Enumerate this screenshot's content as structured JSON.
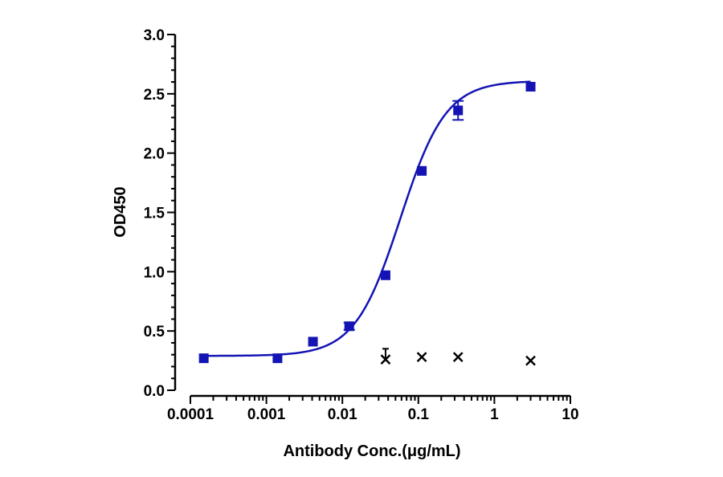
{
  "chart_data": {
    "type": "scatter",
    "title": "",
    "xlabel": "Antibody Conc.(μg/mL)",
    "ylabel": "OD450",
    "x_scale": "log",
    "xlim": [
      0.0001,
      10
    ],
    "ylim": [
      0.0,
      3.0
    ],
    "x_ticks": [
      0.0001,
      0.001,
      0.01,
      0.1,
      1,
      10
    ],
    "x_tick_labels": [
      "0.0001",
      "0.001",
      "0.01",
      "0.1",
      "1",
      "10"
    ],
    "y_ticks": [
      0.0,
      0.5,
      1.0,
      1.5,
      2.0,
      2.5,
      3.0
    ],
    "y_tick_labels": [
      "0.0",
      "0.5",
      "1.0",
      "1.5",
      "2.0",
      "2.5",
      "3.0"
    ],
    "grid": false,
    "legend": "none",
    "colors": {
      "series": "#1414b4",
      "markers_secondary": "#000000"
    },
    "series": [
      {
        "marker": "square",
        "x": [
          0.00015,
          0.0014,
          0.0041,
          0.0123,
          0.037,
          0.111,
          0.333,
          3.0
        ],
        "y": [
          0.27,
          0.27,
          0.41,
          0.54,
          0.97,
          1.85,
          2.36,
          2.56
        ],
        "y_err": [
          0.0,
          0.0,
          0.0,
          0.03,
          0.0,
          0.0,
          0.08,
          0.0
        ],
        "fit_curve": "four-parameter logistic",
        "fit": {
          "bottom": 0.29,
          "top": 2.61,
          "ec50": 0.058,
          "hill": 1.45
        }
      },
      {
        "marker": "x",
        "x": [
          0.037,
          0.111,
          0.333,
          3.0
        ],
        "y": [
          0.26,
          0.28,
          0.28,
          0.25
        ],
        "y_err": [
          0.09,
          0.0,
          0.0,
          0.0
        ]
      }
    ]
  }
}
